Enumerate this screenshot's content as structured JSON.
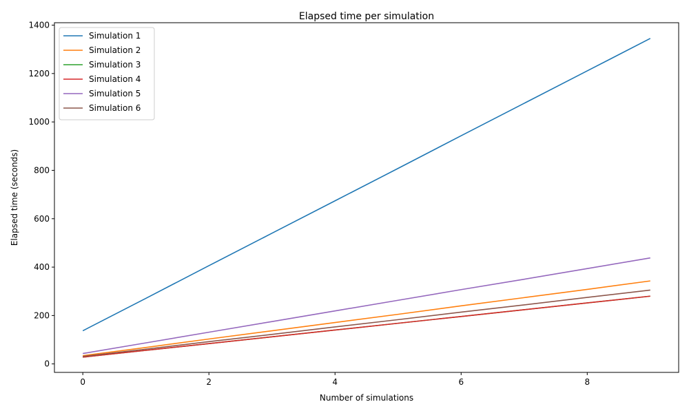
{
  "chart_data": {
    "type": "line",
    "title": "Elapsed time per simulation",
    "xlabel": "Number of simulations",
    "ylabel": "Elapsed time (seconds)",
    "xlim": [
      -0.45,
      9.45
    ],
    "ylim": [
      -35,
      1410
    ],
    "xticks": [
      0,
      2,
      4,
      6,
      8
    ],
    "yticks": [
      0,
      200,
      400,
      600,
      800,
      1000,
      1200,
      1400
    ],
    "grid": false,
    "legend_position": "top-left",
    "x": [
      0,
      1,
      2,
      3,
      4,
      5,
      6,
      7,
      8,
      9
    ],
    "series": [
      {
        "name": "Simulation 1",
        "color": "#1f77b4",
        "values": [
          137,
          271,
          406,
          540,
          674,
          808,
          943,
          1077,
          1211,
          1345
        ]
      },
      {
        "name": "Simulation 2",
        "color": "#ff7f0e",
        "values": [
          34,
          68,
          103,
          137,
          171,
          205,
          240,
          274,
          308,
          343
        ]
      },
      {
        "name": "Simulation 3",
        "color": "#2ca02c",
        "values": [
          28,
          56,
          84,
          112,
          140,
          168,
          196,
          224,
          252,
          280
        ]
      },
      {
        "name": "Simulation 4",
        "color": "#d62728",
        "values": [
          28,
          56,
          84,
          112,
          140,
          168,
          196,
          224,
          252,
          280
        ]
      },
      {
        "name": "Simulation 5",
        "color": "#9467bd",
        "values": [
          43,
          87,
          131,
          175,
          219,
          263,
          307,
          350,
          394,
          438
        ]
      },
      {
        "name": "Simulation 6",
        "color": "#8c564b",
        "values": [
          31,
          61,
          92,
          122,
          153,
          183,
          214,
          244,
          275,
          305
        ]
      }
    ]
  }
}
